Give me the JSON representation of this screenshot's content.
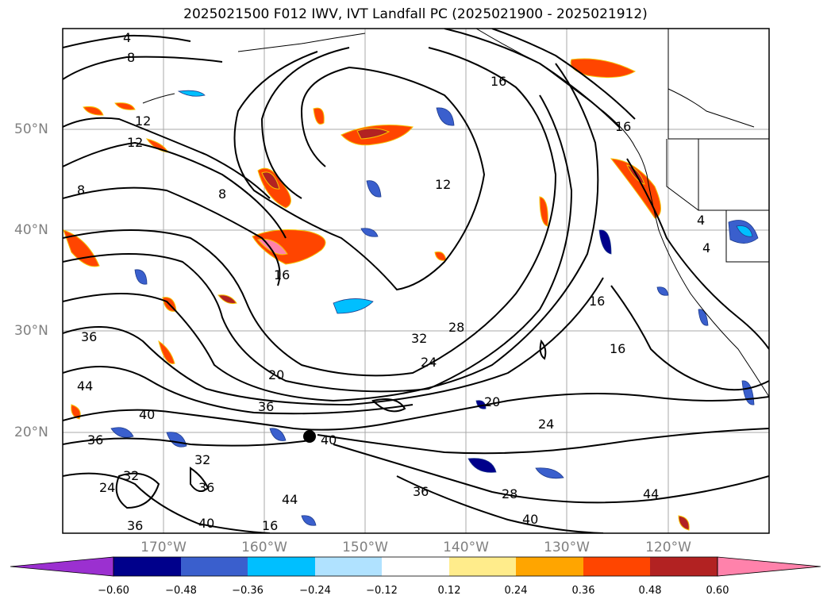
{
  "title": "2025021500 F012 IWV, IVT Landfall PC (2025021900 - 2025021912)",
  "lat_labels": [
    "50°N",
    "40°N",
    "30°N",
    "20°N"
  ],
  "lon_labels": [
    "170°W",
    "160°W",
    "150°W",
    "140°W",
    "130°W",
    "120°W"
  ],
  "colorbar": {
    "ticks": [
      "−0.60",
      "−0.48",
      "−0.36",
      "−0.24",
      "−0.12",
      "0.12",
      "0.24",
      "0.36",
      "0.48",
      "0.60"
    ],
    "colors": [
      "#9b30d0",
      "#00008b",
      "#3a5fcd",
      "#00bfff",
      "#b0e2ff",
      "#ffffff",
      "#ffec8b",
      "#ffa500",
      "#ff4500",
      "#b22222",
      "#ff82ab"
    ]
  },
  "contour_labels": [
    "4",
    "8",
    "12",
    "12",
    "8",
    "8",
    "16",
    "12",
    "16",
    "16",
    "36",
    "44",
    "40",
    "36",
    "36",
    "32",
    "32",
    "24",
    "36",
    "40",
    "36",
    "40",
    "44",
    "20",
    "32",
    "28",
    "24",
    "20",
    "24",
    "28",
    "36",
    "40",
    "44",
    "16",
    "16",
    "16",
    "4",
    "4"
  ],
  "map_data": {
    "projection": "PlateCarree",
    "extent": {
      "lon": [
        -180,
        -110
      ],
      "lat": [
        10,
        60
      ]
    },
    "gridlines": true,
    "fields": [
      "IWV contours",
      "IVT Landfall PC shading"
    ]
  }
}
